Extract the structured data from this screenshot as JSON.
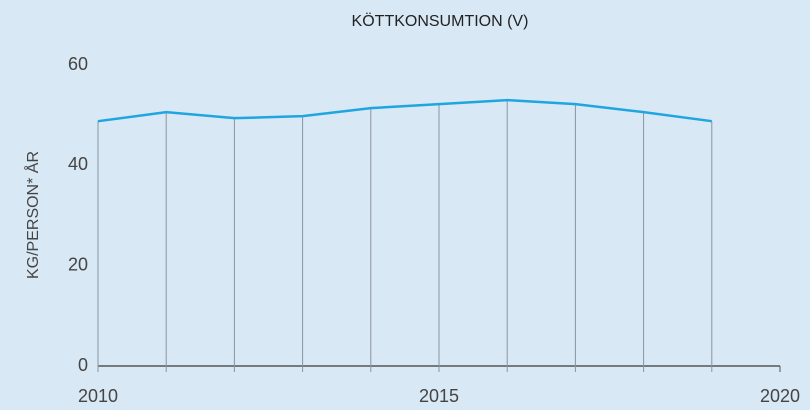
{
  "chart_data": {
    "type": "line",
    "title": "KÖTTKONSUMTION (V)",
    "y_label": "KG/PERSON* ÅR",
    "x": [
      2010,
      2011,
      2012,
      2013,
      2014,
      2015,
      2016,
      2017,
      2018,
      2019
    ],
    "values": [
      48.8,
      50.6,
      49.4,
      49.8,
      51.4,
      52.2,
      53.0,
      52.2,
      50.6,
      48.8
    ],
    "color": "#1fa6e0",
    "xlim": [
      2010,
      2020
    ],
    "xticks": [
      2010,
      2015,
      2020
    ],
    "ylim": [
      0,
      60
    ],
    "yticks": [
      0,
      20,
      40,
      60
    ],
    "grid": false
  }
}
